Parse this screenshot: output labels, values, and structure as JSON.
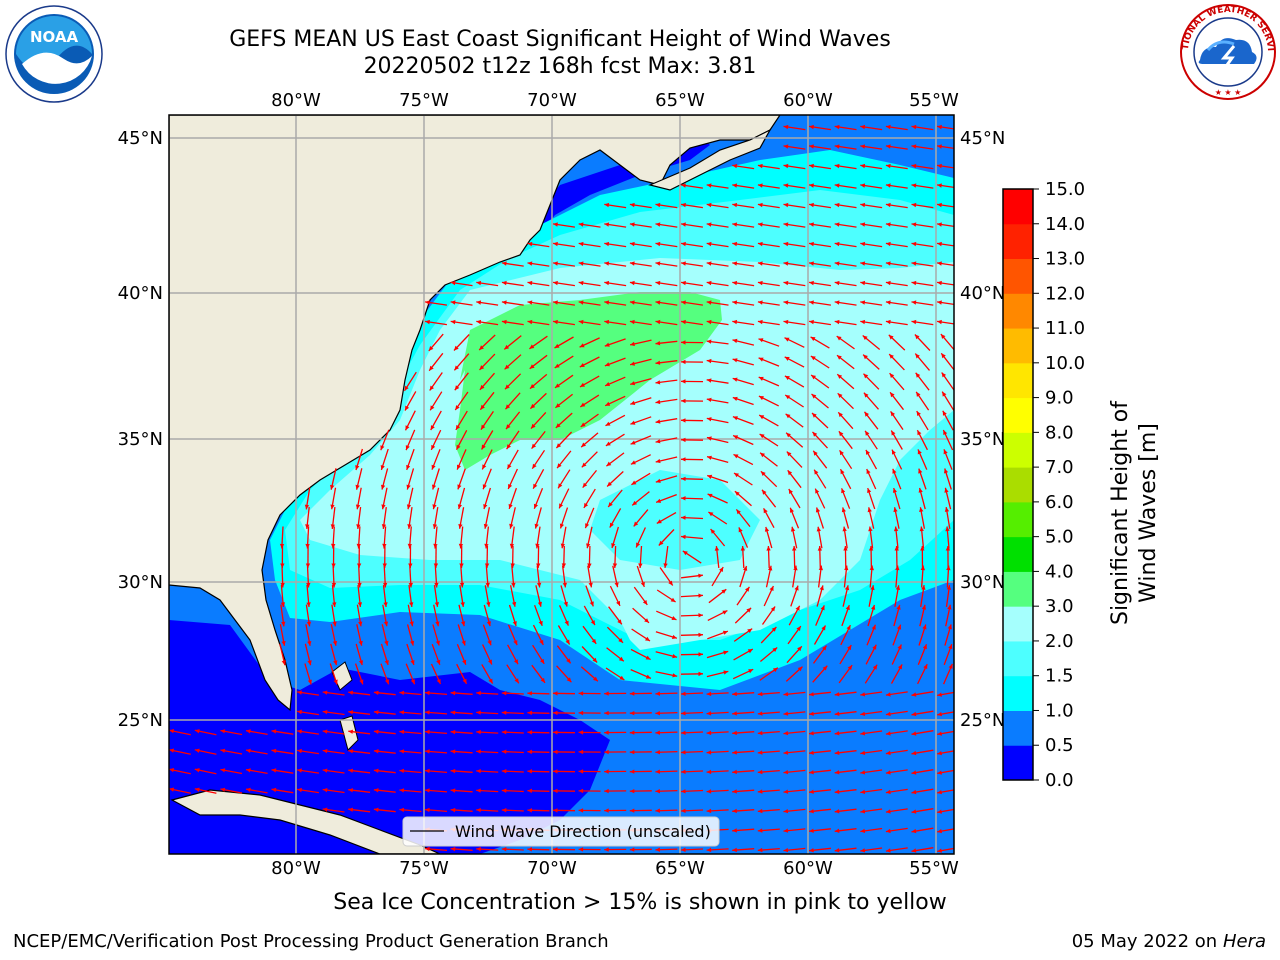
{
  "header": {
    "title_line1": "GEFS MEAN US East Coast Significant Height of Wind Waves",
    "title_line2": "20220502 t12z 168h fcst   Max: 3.81"
  },
  "logos": {
    "left": {
      "name": "noaa-logo",
      "text": "NOAA",
      "ring_text": "NATIONAL OCEANIC AND ATMOSPHERIC ADMINISTRATION · U.S. DEPARTMENT OF COMMERCE"
    },
    "right": {
      "name": "nws-logo",
      "ring_text": "NATIONAL WEATHER SERVICE"
    }
  },
  "map": {
    "lon_labels": [
      "80°W",
      "75°W",
      "70°W",
      "65°W",
      "60°W",
      "55°W"
    ],
    "lat_labels": [
      "45°N",
      "40°N",
      "35°N",
      "30°N",
      "25°N"
    ],
    "legend_label": "Wind Wave Direction (unscaled)",
    "arrow_color": "#ff0000",
    "land_color": "#efecdc"
  },
  "colorbar": {
    "title": "Significant Height of Wind Waves [m]",
    "tick_labels": [
      "0.0",
      "0.5",
      "1.0",
      "1.5",
      "2.0",
      "3.0",
      "4.0",
      "5.0",
      "6.0",
      "7.0",
      "8.0",
      "9.0",
      "10.0",
      "11.0",
      "12.0",
      "13.0",
      "14.0",
      "15.0"
    ],
    "colors": [
      "#0000ff",
      "#0a7cff",
      "#00ffff",
      "#4dffff",
      "#a5fffd",
      "#55ff7f",
      "#00e000",
      "#55ee00",
      "#aadd00",
      "#ccff00",
      "#ffff00",
      "#ffe600",
      "#ffbb00",
      "#ff8800",
      "#ff5500",
      "#ff2200",
      "#ff0000"
    ]
  },
  "subtitle": "Sea Ice Concentration > 15% is shown in pink to yellow",
  "footer": {
    "left": "NCEP/EMC/Verification Post Processing Product Generation Branch",
    "right_date": "05 May 2022 on",
    "right_host": "Hera"
  }
}
